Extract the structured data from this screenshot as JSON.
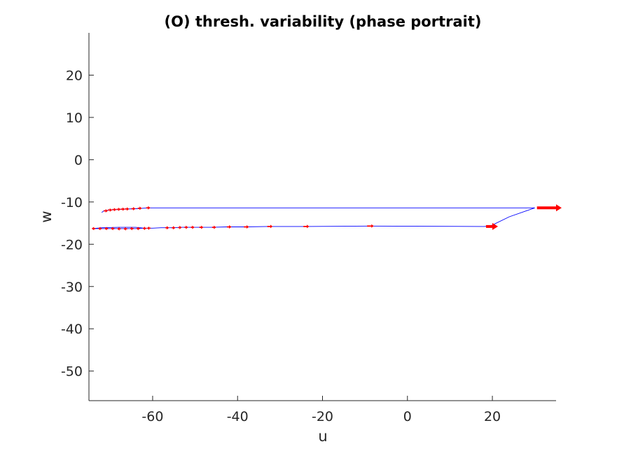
{
  "chart_data": {
    "type": "line",
    "title": "(O) thresh. variability (phase portrait)",
    "xlabel": "u",
    "ylabel": "w",
    "xlim": [
      -75,
      35
    ],
    "ylim": [
      -57,
      30
    ],
    "xticks": [
      -60,
      -40,
      -20,
      0,
      20
    ],
    "xtick_labels": [
      "-60",
      "-40",
      "-20",
      "0",
      "20"
    ],
    "yticks": [
      -50,
      -40,
      -30,
      -20,
      -10,
      0,
      10,
      20
    ],
    "ytick_labels": [
      "-50",
      "-40",
      "-30",
      "-20",
      "-10",
      "0",
      "10",
      "20"
    ],
    "grid": false,
    "legend": "none",
    "series": [
      {
        "style": "trajectory",
        "color": "#0000ff",
        "x": [
          -72,
          -71.5,
          -70,
          -67,
          -64,
          -61,
          -40,
          -10,
          10,
          30,
          24,
          19.5,
          18,
          -9,
          -24,
          -33,
          -38.5,
          -42.5,
          -46,
          -49,
          -51.5,
          -53.5,
          -55,
          -56.5,
          -58,
          -60,
          -62,
          -64,
          -66,
          -68,
          -70,
          -72,
          -74,
          -72,
          -68,
          -64,
          -62
        ],
        "y": [
          -12.5,
          -12.1,
          -11.9,
          -11.7,
          -11.6,
          -11.4,
          -11.4,
          -11.4,
          -11.4,
          -11.4,
          -13.5,
          -15.7,
          -15.8,
          -15.7,
          -15.8,
          -15.8,
          -15.9,
          -15.9,
          -16.0,
          -16.0,
          -16.0,
          -16.0,
          -16.1,
          -16.1,
          -16.1,
          -16.2,
          -16.2,
          -16.3,
          -16.3,
          -16.3,
          -16.3,
          -16.3,
          -16.3,
          -16.1,
          -16.0,
          -16.0,
          -16.2
        ]
      },
      {
        "style": "velocity-arrows",
        "color": "#ff0000",
        "points": [
          {
            "x": -71.5,
            "y": -12.1,
            "dx": 0.4
          },
          {
            "x": -70.5,
            "y": -11.9,
            "dx": 0.4
          },
          {
            "x": -69.5,
            "y": -11.8,
            "dx": 0.4
          },
          {
            "x": -68.5,
            "y": -11.75,
            "dx": 0.4
          },
          {
            "x": -67.5,
            "y": -11.7,
            "dx": 0.4
          },
          {
            "x": -66.5,
            "y": -11.65,
            "dx": 0.4
          },
          {
            "x": -65,
            "y": -11.6,
            "dx": 0.4
          },
          {
            "x": -63.5,
            "y": -11.5,
            "dx": 0.4
          },
          {
            "x": -61.5,
            "y": -11.4,
            "dx": 0.4
          },
          {
            "x": 30.5,
            "y": -11.4,
            "dx": 4.5
          },
          {
            "x": 18.5,
            "y": -15.8,
            "dx": 1.5
          },
          {
            "x": -9.5,
            "y": -15.7,
            "dx": 1.0
          },
          {
            "x": -24.5,
            "y": -15.8,
            "dx": 0.8
          },
          {
            "x": -33,
            "y": -15.8,
            "dx": 0.7
          },
          {
            "x": -38.5,
            "y": -15.9,
            "dx": 0.6
          },
          {
            "x": -42.5,
            "y": -15.9,
            "dx": 0.5
          },
          {
            "x": -46,
            "y": -16.0,
            "dx": 0.4
          },
          {
            "x": -49,
            "y": -16.0,
            "dx": 0.4
          },
          {
            "x": -51,
            "y": -16.0,
            "dx": 0.3
          },
          {
            "x": -52.5,
            "y": -16.0,
            "dx": 0.3
          },
          {
            "x": -54,
            "y": -16.05,
            "dx": 0.3
          },
          {
            "x": -55.5,
            "y": -16.1,
            "dx": 0.3
          },
          {
            "x": -57,
            "y": -16.1,
            "dx": 0.3
          },
          {
            "x": -60.5,
            "y": -16.2,
            "dx": -0.3
          },
          {
            "x": -61.5,
            "y": -16.25,
            "dx": -0.3
          },
          {
            "x": -63,
            "y": -16.3,
            "dx": -0.3
          },
          {
            "x": -64.5,
            "y": -16.3,
            "dx": -0.3
          },
          {
            "x": -66,
            "y": -16.35,
            "dx": -0.3
          },
          {
            "x": -67.5,
            "y": -16.35,
            "dx": -0.3
          },
          {
            "x": -69,
            "y": -16.3,
            "dx": -0.3
          },
          {
            "x": -70.5,
            "y": -16.3,
            "dx": -0.3
          },
          {
            "x": -72,
            "y": -16.3,
            "dx": -0.3
          },
          {
            "x": -73.5,
            "y": -16.3,
            "dx": -0.3
          }
        ]
      }
    ]
  }
}
